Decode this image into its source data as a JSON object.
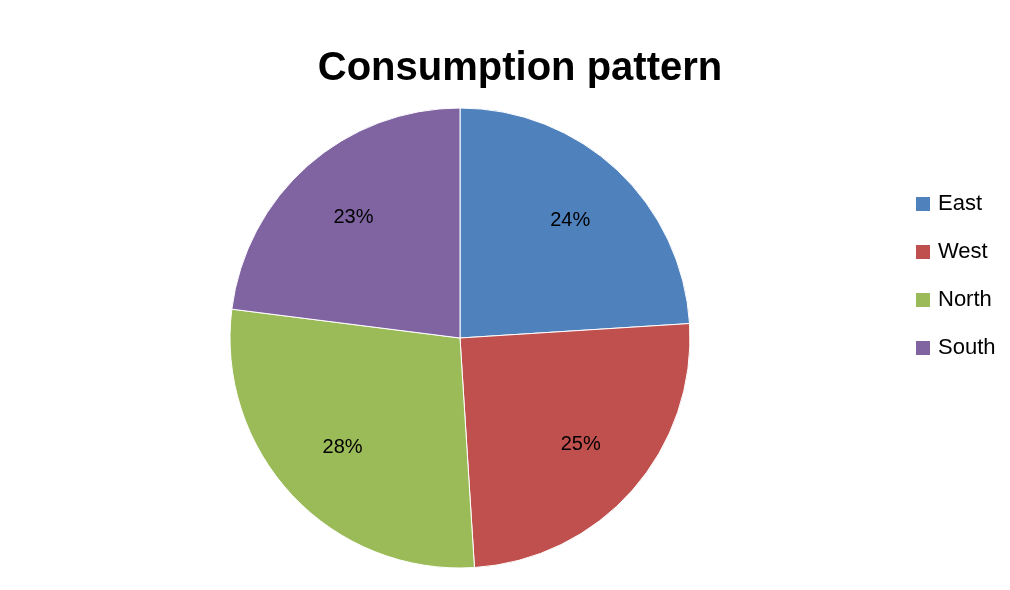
{
  "chart_data": {
    "type": "pie",
    "title": "Consumption pattern",
    "categories": [
      "East",
      "West",
      "North",
      "South"
    ],
    "values": [
      24,
      25,
      28,
      23
    ],
    "colors": [
      "#4f81bd",
      "#c0504d",
      "#9bbb59",
      "#8064a2"
    ],
    "value_labels": [
      "24%",
      "25%",
      "28%",
      "23%"
    ],
    "legend": "right"
  }
}
